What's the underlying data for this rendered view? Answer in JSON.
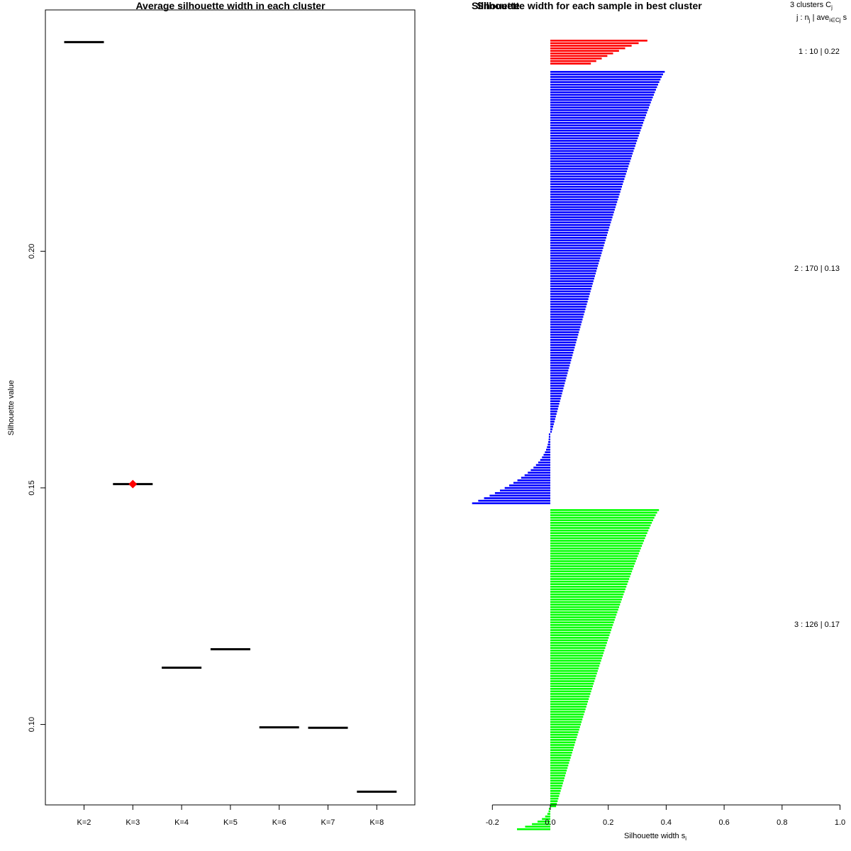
{
  "colors": {
    "cluster1": "#ff0000",
    "cluster2": "#0000ff",
    "cluster3": "#00ff00",
    "axis": "#000000",
    "best_marker": "#ff0000"
  },
  "chart_data": [
    {
      "type": "scatter",
      "title": "Average silhouette width in each cluster",
      "xlabel": "",
      "ylabel": "Silhouette value",
      "ylim": [
        0.083,
        0.251
      ],
      "yticks": [
        0.1,
        0.15,
        0.2
      ],
      "ytick_labels": [
        "0.10",
        "0.15",
        "0.20"
      ],
      "categories": [
        "K=2",
        "K=3",
        "K=4",
        "K=5",
        "K=6",
        "K=7",
        "K=8"
      ],
      "values": [
        0.2442,
        0.1508,
        0.112,
        0.1159,
        0.0994,
        0.0993,
        0.0858
      ],
      "best_index": 1
    },
    {
      "type": "bar",
      "title": "Silhouette width for each sample in best cluster",
      "overlapping_title": "Silhouette",
      "xlabel": "Silhouette width s",
      "xlabel_subscript": "i",
      "xlim": [
        -0.2,
        1.0
      ],
      "xticks": [
        -0.2,
        0.0,
        0.2,
        0.4,
        0.6,
        0.8,
        1.0
      ],
      "xtick_labels": [
        "-0.2",
        "0.0",
        "0.2",
        "0.4",
        "0.6",
        "0.8",
        "1.0"
      ],
      "legend_header_line1": "3  clusters  C",
      "legend_header_line1_sub": "j",
      "legend_header_line2": "j :  n",
      "legend_header_line2_sub": "j",
      "legend_header_line2_rest": " | ave",
      "legend_header_line2_sub2": "i∈Cj",
      "legend_header_line2_tail": "  s",
      "clusters": [
        {
          "label": "1 :   10  |  0.22",
          "n": 10,
          "avg": 0.22,
          "max": 0.335,
          "min": 0.14,
          "neg_count": 0,
          "neg_min": 0
        },
        {
          "label": "2 :   170  |  0.13",
          "n": 170,
          "avg": 0.13,
          "max": 0.395,
          "min": 0.005,
          "neg_count": 28,
          "neg_min": -0.27
        },
        {
          "label": "3 :   126  |  0.17",
          "n": 126,
          "avg": 0.17,
          "max": 0.375,
          "min": 0.02,
          "neg_count": 9,
          "neg_min": -0.115
        }
      ]
    }
  ]
}
